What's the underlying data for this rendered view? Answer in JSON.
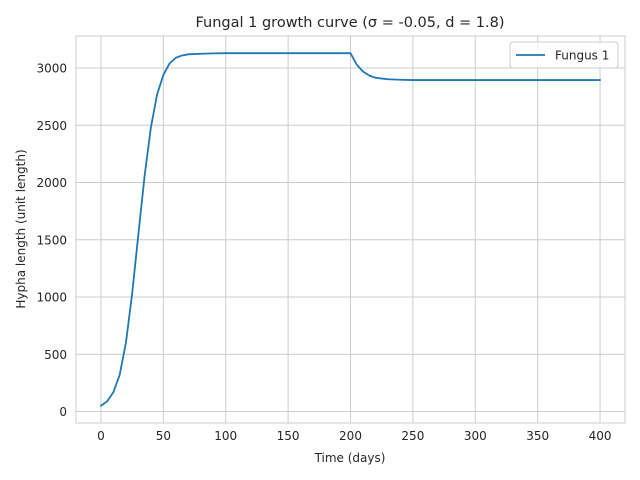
{
  "chart_data": {
    "type": "line",
    "title": "Fungal 1 growth curve (σ = -0.05, d = 1.8)",
    "xlabel": "Time (days)",
    "ylabel": "Hypha length (unit length)",
    "xlim": [
      -20,
      420
    ],
    "ylim": [
      -100,
      3280
    ],
    "xticks": [
      0,
      50,
      100,
      150,
      200,
      250,
      300,
      350,
      400
    ],
    "yticks": [
      0,
      500,
      1000,
      1500,
      2000,
      2500,
      3000
    ],
    "grid": true,
    "legend_position": "top-right",
    "line_color": "#1f77b4",
    "series": [
      {
        "name": "Fungus 1",
        "x": [
          0,
          5,
          10,
          15,
          20,
          25,
          30,
          35,
          40,
          45,
          50,
          55,
          60,
          65,
          70,
          80,
          90,
          100,
          120,
          150,
          180,
          200,
          205,
          210,
          215,
          220,
          230,
          240,
          250,
          300,
          350,
          400
        ],
        "values": [
          50,
          90,
          170,
          320,
          600,
          1030,
          1550,
          2060,
          2480,
          2770,
          2940,
          3040,
          3090,
          3110,
          3120,
          3125,
          3128,
          3130,
          3130,
          3130,
          3130,
          3130,
          3030,
          2970,
          2935,
          2915,
          2902,
          2898,
          2895,
          2895,
          2895,
          2895
        ]
      }
    ]
  }
}
